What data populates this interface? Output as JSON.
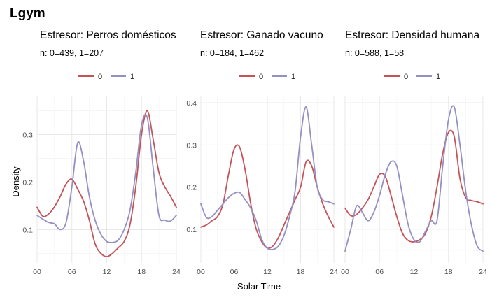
{
  "title": "Lgym",
  "xlabel": "Solar Time",
  "ylabel": "Density",
  "colors": {
    "0": "#c4545a",
    "1": "#9390c4"
  },
  "chart_data": [
    {
      "type": "line",
      "title": "Estresor: Perros domésticos",
      "subtitle": "n:  0=439, 1=207",
      "x_ticks": [
        "00",
        "06",
        "12",
        "18",
        "24"
      ],
      "y_ticks": [
        "0.1",
        "0.2",
        "0.3"
      ],
      "xlim": [
        0,
        24
      ],
      "ylim": [
        0.03,
        0.38
      ],
      "legend": {
        "position": "top",
        "labels": [
          "0",
          "1"
        ]
      },
      "series": [
        {
          "name": "0",
          "x": [
            0,
            1,
            2,
            3,
            4,
            5,
            6,
            7,
            8,
            9,
            10,
            11,
            12,
            13,
            14,
            15,
            16,
            17,
            18,
            19,
            20,
            21,
            22,
            23,
            24
          ],
          "y": [
            0.147,
            0.128,
            0.133,
            0.148,
            0.17,
            0.196,
            0.206,
            0.185,
            0.16,
            0.12,
            0.07,
            0.05,
            0.043,
            0.05,
            0.062,
            0.075,
            0.11,
            0.19,
            0.3,
            0.35,
            0.29,
            0.22,
            0.19,
            0.17,
            0.147
          ]
        },
        {
          "name": "1",
          "x": [
            0,
            1,
            2,
            3,
            4,
            5,
            6,
            7,
            8,
            9,
            10,
            11,
            12,
            13,
            14,
            15,
            16,
            17,
            18,
            19,
            20,
            21,
            22,
            23,
            24
          ],
          "y": [
            0.13,
            0.122,
            0.115,
            0.112,
            0.1,
            0.115,
            0.19,
            0.283,
            0.245,
            0.17,
            0.12,
            0.09,
            0.075,
            0.073,
            0.078,
            0.1,
            0.14,
            0.22,
            0.32,
            0.335,
            0.23,
            0.13,
            0.12,
            0.118,
            0.13
          ]
        }
      ]
    },
    {
      "type": "line",
      "title": "Estresor: Ganado vacuno",
      "subtitle": "n:  0=184, 1=462",
      "x_ticks": [
        "00",
        "06",
        "12",
        "18",
        "24"
      ],
      "y_ticks": [
        "0.1",
        "0.2",
        "0.3",
        "0.4"
      ],
      "xlim": [
        0,
        24
      ],
      "ylim": [
        0.02,
        0.415
      ],
      "legend": {
        "position": "top",
        "labels": [
          "0",
          "1"
        ]
      },
      "series": [
        {
          "name": "0",
          "x": [
            0,
            1,
            2,
            3,
            4,
            5,
            6,
            7,
            8,
            9,
            10,
            11,
            12,
            13,
            14,
            15,
            16,
            17,
            18,
            19,
            20,
            21,
            22,
            23,
            24
          ],
          "y": [
            0.105,
            0.11,
            0.12,
            0.13,
            0.16,
            0.23,
            0.29,
            0.295,
            0.24,
            0.16,
            0.1,
            0.07,
            0.055,
            0.06,
            0.08,
            0.11,
            0.14,
            0.17,
            0.2,
            0.26,
            0.25,
            0.2,
            0.16,
            0.13,
            0.105
          ]
        },
        {
          "name": "1",
          "x": [
            0,
            1,
            2,
            3,
            4,
            5,
            6,
            7,
            8,
            9,
            10,
            11,
            12,
            13,
            14,
            15,
            16,
            17,
            18,
            19,
            20,
            21,
            22,
            23,
            24
          ],
          "y": [
            0.16,
            0.128,
            0.13,
            0.145,
            0.16,
            0.175,
            0.185,
            0.187,
            0.17,
            0.15,
            0.12,
            0.075,
            0.055,
            0.052,
            0.06,
            0.085,
            0.13,
            0.19,
            0.32,
            0.39,
            0.3,
            0.2,
            0.17,
            0.165,
            0.16
          ]
        }
      ]
    },
    {
      "type": "line",
      "title": "Estresor: Densidad humana",
      "subtitle": "n:  0=588, 1=58",
      "x_ticks": [
        "00",
        "06",
        "12",
        "18",
        "24"
      ],
      "y_ticks": [],
      "xlim": [
        0,
        24
      ],
      "ylim": [
        0.02,
        0.415
      ],
      "legend": {
        "position": "top",
        "labels": [
          "0",
          "1"
        ]
      },
      "series": [
        {
          "name": "0",
          "x": [
            0,
            1,
            2,
            3,
            4,
            5,
            6,
            7,
            8,
            9,
            10,
            11,
            12,
            13,
            14,
            15,
            16,
            17,
            18,
            19,
            20,
            21,
            22,
            23,
            24
          ],
          "y": [
            0.15,
            0.132,
            0.135,
            0.15,
            0.17,
            0.2,
            0.23,
            0.225,
            0.18,
            0.13,
            0.09,
            0.073,
            0.07,
            0.075,
            0.09,
            0.13,
            0.2,
            0.28,
            0.33,
            0.32,
            0.22,
            0.175,
            0.168,
            0.165,
            0.16
          ]
        },
        {
          "name": "1",
          "x": [
            0,
            1,
            2,
            3,
            4,
            5,
            6,
            7,
            8,
            9,
            10,
            11,
            12,
            13,
            14,
            15,
            16,
            17,
            18,
            19,
            20,
            21,
            22,
            23,
            24
          ],
          "y": [
            0.048,
            0.1,
            0.155,
            0.14,
            0.12,
            0.14,
            0.18,
            0.23,
            0.26,
            0.25,
            0.18,
            0.11,
            0.075,
            0.07,
            0.095,
            0.12,
            0.12,
            0.25,
            0.36,
            0.39,
            0.3,
            0.19,
            0.11,
            0.06,
            0.048
          ]
        }
      ]
    }
  ]
}
